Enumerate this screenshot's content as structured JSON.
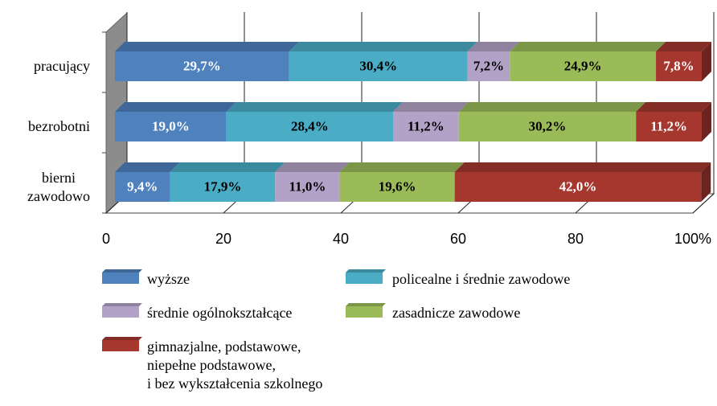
{
  "chart_data": {
    "type": "stacked_bar_3d",
    "categories": [
      "pracujący",
      "bezrobotni",
      "bierni\nzawodowo"
    ],
    "series": [
      {
        "name": "wyższe",
        "color": "#4f81bd",
        "values": [
          29.7,
          19.0,
          9.4
        ],
        "value_labels": [
          "29,7%",
          "19,0%",
          "9,4%"
        ]
      },
      {
        "name": "policealne i średnie zawodowe",
        "color": "#4bacc6",
        "values": [
          30.4,
          28.4,
          17.9
        ],
        "value_labels": [
          "30,4%",
          "28,4%",
          "17,9%"
        ]
      },
      {
        "name": "średnie ogólnokształcące",
        "color": "#b3a2c7",
        "values": [
          7.2,
          11.2,
          11.0
        ],
        "value_labels": [
          "7,2%",
          "11,2%",
          "11,0%"
        ]
      },
      {
        "name": "zasadnicze zawodowe",
        "color": "#9bbb59",
        "values": [
          24.9,
          30.2,
          19.6
        ],
        "value_labels": [
          "24,9%",
          "30,2%",
          "19,6%"
        ]
      },
      {
        "name": "gimnazjalne, podstawowe,\nniepełne podstawowe,\ni bez wykształcenia szkolnego",
        "color": "#a5372f",
        "values": [
          7.8,
          11.2,
          42.0
        ],
        "value_labels": [
          "7,8%",
          "11,2%",
          "42,0%"
        ]
      }
    ],
    "xlim": [
      0,
      100
    ],
    "xticks": [
      0,
      20,
      40,
      60,
      80,
      {
        "value": 100,
        "label": "100%"
      }
    ],
    "grid": true
  }
}
